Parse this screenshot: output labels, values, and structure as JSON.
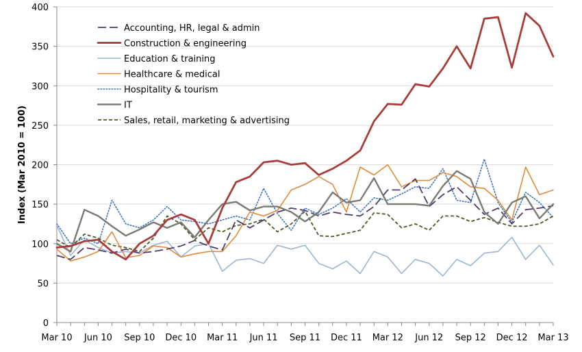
{
  "chart_data": {
    "type": "line",
    "title": "",
    "xlabel": "",
    "ylabel": "Index (Mar 2010 = 100)",
    "ylim": [
      0,
      400
    ],
    "yticks": [
      0,
      50,
      100,
      150,
      200,
      250,
      300,
      350,
      400
    ],
    "grid": "horizontal",
    "legend_position": "top-left",
    "x": [
      "Mar 10",
      "Apr 10",
      "May 10",
      "Jun 10",
      "Jul 10",
      "Aug 10",
      "Sep 10",
      "Oct 10",
      "Nov 10",
      "Dec 10",
      "Jan 11",
      "Feb 11",
      "Mar 11",
      "Apr 11",
      "May 11",
      "Jun 11",
      "Jul 11",
      "Aug 11",
      "Sep 11",
      "Oct 11",
      "Nov 11",
      "Dec 11",
      "Jan 12",
      "Feb 12",
      "Mar 12",
      "Apr 12",
      "May 12",
      "Jun 12",
      "Jul 12",
      "Aug 12",
      "Sep 12",
      "Oct 12",
      "Nov 12",
      "Dec 12",
      "Jan 13",
      "Feb 13",
      "Mar 13"
    ],
    "x_tick_labels": [
      "Mar 10",
      "Jun 10",
      "Sep 10",
      "Dec 10",
      "Mar 11",
      "Jun 11",
      "Sep 11",
      "Dec 11",
      "Mar 12",
      "Jun 12",
      "Sep 12",
      "Dec 12",
      "Mar 13"
    ],
    "series": [
      {
        "name": "Accounting, HR, legal & admin",
        "color": "#4f3a6b",
        "style": "longdash",
        "values": [
          85,
          80,
          95,
          92,
          88,
          93,
          88,
          90,
          93,
          97,
          104,
          97,
          92,
          130,
          120,
          130,
          140,
          145,
          142,
          135,
          140,
          137,
          135,
          147,
          168,
          168,
          182,
          147,
          162,
          172,
          155,
          137,
          145,
          125,
          143,
          145,
          148
        ]
      },
      {
        "name": "Construction & engineering",
        "color": "#a83c3a",
        "style": "thick",
        "values": [
          95,
          97,
          103,
          105,
          90,
          80,
          100,
          110,
          130,
          137,
          130,
          100,
          145,
          178,
          185,
          203,
          205,
          200,
          202,
          187,
          195,
          205,
          218,
          255,
          277,
          276,
          302,
          299,
          322,
          350,
          322,
          385,
          387,
          323,
          392,
          376,
          337
        ]
      },
      {
        "name": "Education & training",
        "color": "#9bb5d0",
        "style": "solid",
        "values": [
          123,
          85,
          105,
          95,
          88,
          90,
          88,
          98,
          103,
          83,
          97,
          100,
          65,
          79,
          81,
          75,
          98,
          93,
          98,
          75,
          68,
          78,
          62,
          90,
          83,
          62,
          80,
          75,
          59,
          80,
          72,
          88,
          90,
          108,
          80,
          98,
          73
        ]
      },
      {
        "name": "Healthcare & medical",
        "color": "#e08a3a",
        "style": "solid",
        "values": [
          93,
          78,
          83,
          90,
          115,
          82,
          85,
          97,
          95,
          83,
          87,
          90,
          90,
          110,
          140,
          135,
          142,
          168,
          175,
          185,
          175,
          140,
          197,
          187,
          200,
          172,
          180,
          180,
          190,
          185,
          172,
          170,
          155,
          130,
          197,
          162,
          168
        ]
      },
      {
        "name": "Hospitality & tourism",
        "color": "#3a72c0",
        "style": "dotted",
        "values": [
          125,
          100,
          107,
          100,
          155,
          125,
          120,
          130,
          147,
          130,
          128,
          125,
          130,
          135,
          130,
          170,
          138,
          117,
          145,
          137,
          145,
          157,
          140,
          158,
          155,
          163,
          172,
          170,
          195,
          155,
          152,
          207,
          152,
          127,
          165,
          152,
          133
        ]
      },
      {
        "name": "IT",
        "color": "#7a7a72",
        "style": "thicksolid",
        "values": [
          100,
          90,
          143,
          135,
          122,
          110,
          118,
          127,
          120,
          127,
          108,
          130,
          150,
          153,
          142,
          147,
          147,
          140,
          128,
          140,
          165,
          152,
          155,
          183,
          150,
          150,
          150,
          148,
          173,
          192,
          182,
          140,
          125,
          152,
          160,
          132,
          150
        ]
      },
      {
        "name": "Sales, retail, marketing & advertising",
        "color": "#4a5a25",
        "style": "dash",
        "values": [
          105,
          95,
          112,
          107,
          98,
          95,
          90,
          107,
          135,
          125,
          105,
          120,
          115,
          123,
          125,
          131,
          115,
          125,
          141,
          110,
          109,
          113,
          117,
          139,
          137,
          120,
          125,
          117,
          135,
          135,
          128,
          133,
          127,
          122,
          122,
          125,
          135
        ]
      }
    ]
  }
}
